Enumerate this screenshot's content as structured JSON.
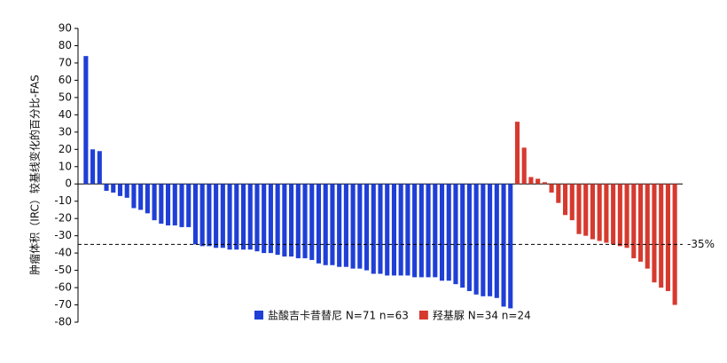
{
  "chart_data": {
    "type": "waterfall",
    "y_label": "肿瘤体积（IRC）较基线变化的百分比-FAS",
    "ylim": [
      -80,
      90
    ],
    "yticks": [
      -80,
      -70,
      -60,
      -50,
      -40,
      -30,
      -20,
      -10,
      0,
      10,
      20,
      30,
      40,
      50,
      60,
      70,
      80,
      90
    ],
    "reference_line": {
      "value": -35,
      "label": "-35%"
    },
    "series": [
      {
        "name": "盐酸吉卡昔替尼 N=71 n=63",
        "color": "#1f3fd6",
        "values": [
          74,
          20,
          19,
          -4,
          -5,
          -7,
          -8,
          -14,
          -15,
          -17,
          -21,
          -23,
          -24,
          -24,
          -25,
          -25,
          -35,
          -36,
          -36,
          -37,
          -37,
          -38,
          -38,
          -38,
          -38,
          -39,
          -40,
          -40,
          -41,
          -42,
          -42,
          -43,
          -43,
          -44,
          -46,
          -47,
          -47,
          -48,
          -48,
          -49,
          -49,
          -50,
          -52,
          -52,
          -53,
          -53,
          -53,
          -53,
          -54,
          -54,
          -54,
          -54,
          -56,
          -56,
          -58,
          -60,
          -62,
          -64,
          -65,
          -65,
          -66,
          -71,
          -72
        ]
      },
      {
        "name": "羟基脲 N=34 n=24",
        "color": "#d63a2f",
        "values": [
          36,
          21,
          4,
          3,
          1,
          -5,
          -11,
          -18,
          -21,
          -29,
          -30,
          -32,
          -33,
          -34,
          -35,
          -36,
          -37,
          -43,
          -45,
          -49,
          -57,
          -60,
          -62,
          -70
        ]
      }
    ]
  }
}
